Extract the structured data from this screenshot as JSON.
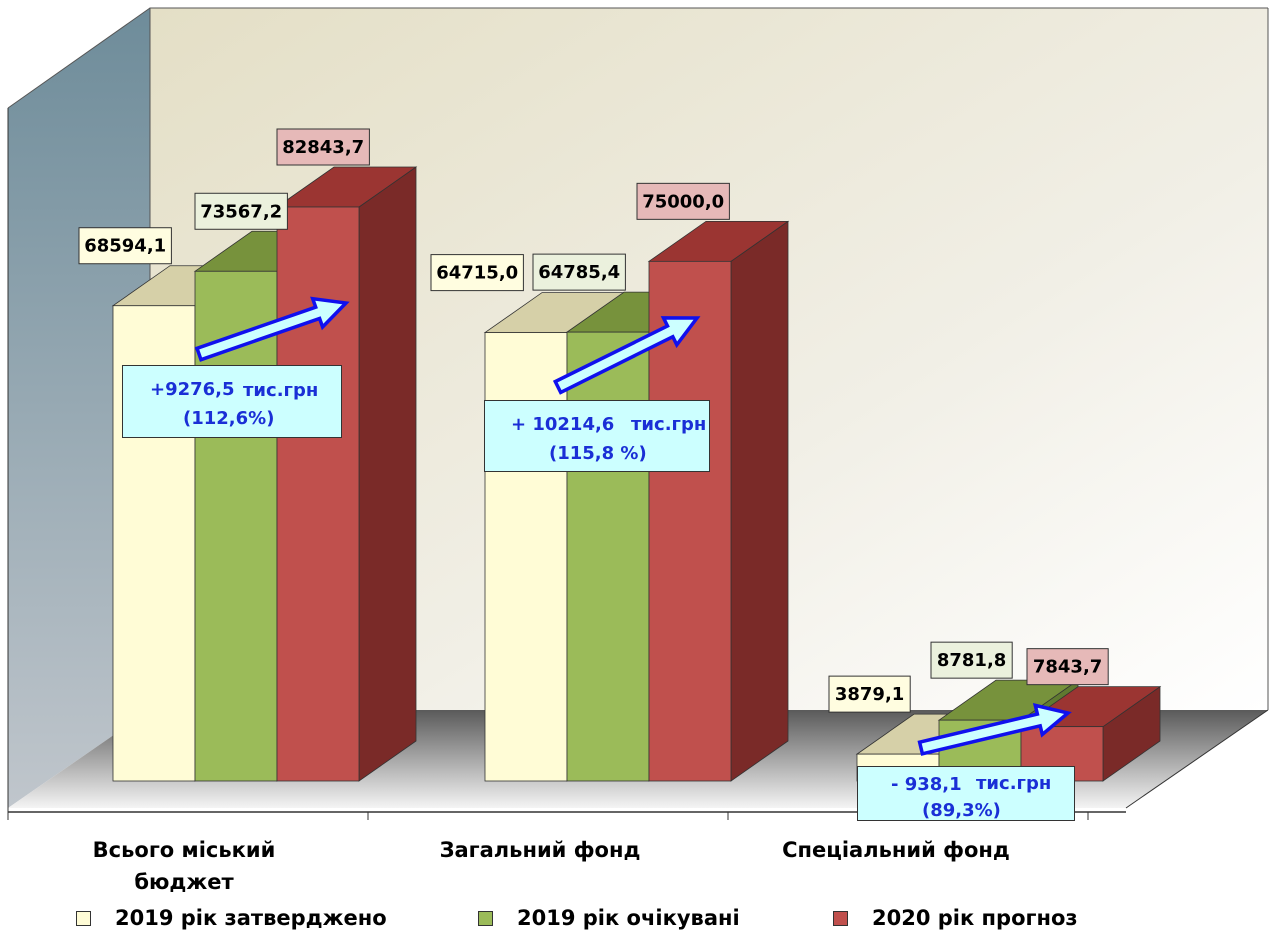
{
  "chart_data": {
    "type": "bar",
    "categories": [
      "Всього міський бюджет",
      "Загальний фонд",
      "Спеціальний фонд"
    ],
    "series": [
      {
        "name": "2019 рік затверджено",
        "values": [
          68594.1,
          64715.0,
          3879.1
        ],
        "labels": [
          "68594,1",
          "64715,0",
          "3879,1"
        ],
        "color": "#fffcd6"
      },
      {
        "name": "2019 рік очікувані",
        "values": [
          73567.2,
          64785.4,
          8781.8
        ],
        "labels": [
          "73567,2",
          "64785,4",
          "8781,8"
        ],
        "color": "#9bbb59"
      },
      {
        "name": "2020 рік прогноз",
        "values": [
          82843.7,
          75000.0,
          7843.7
        ],
        "labels": [
          "82843,7",
          "75000,0",
          "7843,7"
        ],
        "color": "#c0504d"
      }
    ],
    "ylim": [
      0,
      100000
    ],
    "grid": false,
    "legend_position": "bottom",
    "annotations": [
      {
        "change": "+9276,5",
        "unit": "тис.грн",
        "percent": "(112,6%)"
      },
      {
        "change": "+ 10214,6",
        "unit": "тис.грн",
        "percent": "(115,8 %)"
      },
      {
        "change": "- 938,1",
        "unit": "тис.грн",
        "percent": "(89,3%)"
      }
    ]
  },
  "category_labels": {
    "c1_line1": "Всього міський",
    "c1_line2": "бюджет",
    "c2": "Загальний фонд",
    "c3": "Спеціальний фонд"
  }
}
